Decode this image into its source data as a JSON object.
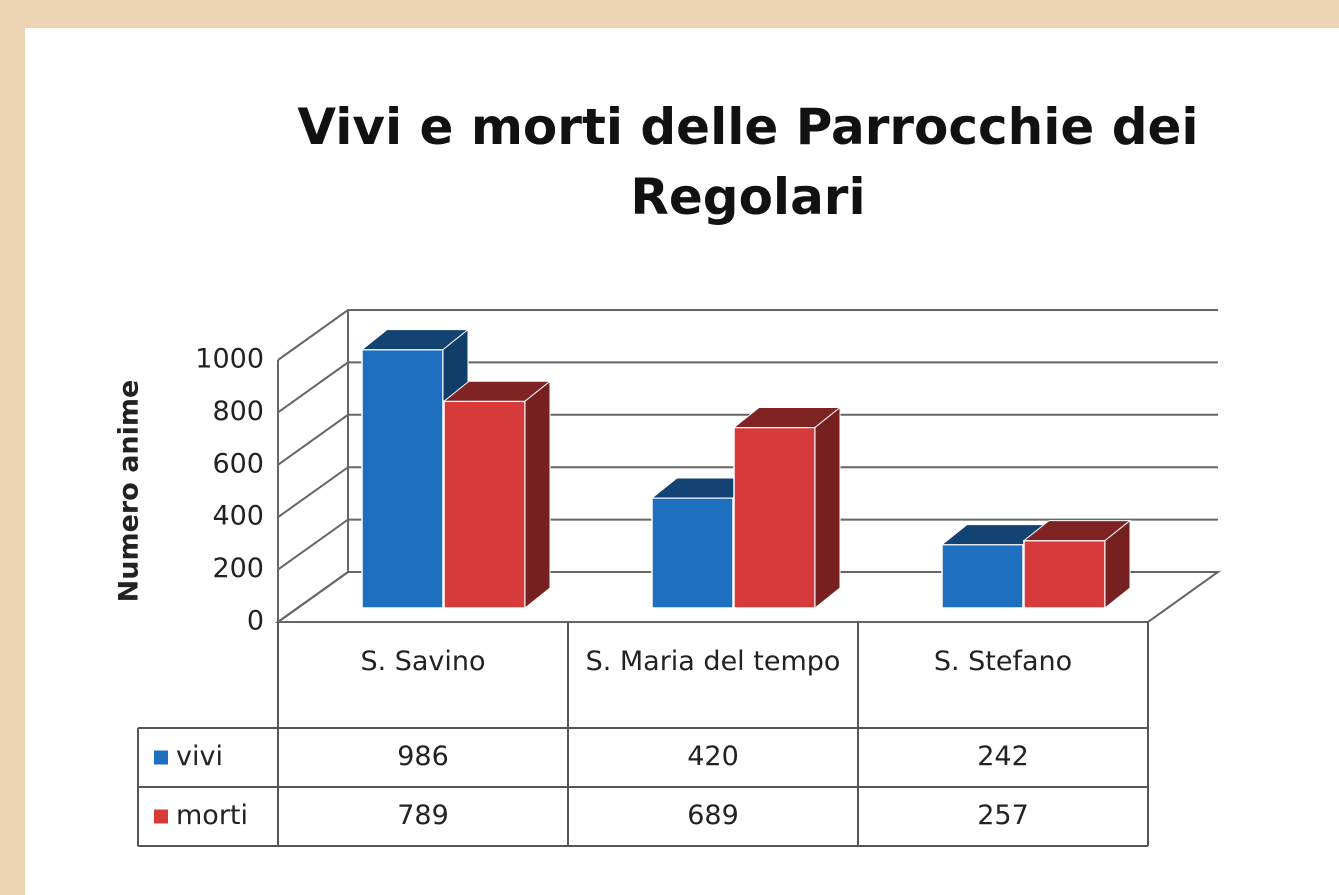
{
  "chart_data": {
    "type": "bar3d",
    "title": "Vivi e morti delle Parrocchie dei Regolari",
    "y_label": "Numero anime",
    "categories": [
      "S. Savino",
      "S. Maria del tempo",
      "S. Stefano"
    ],
    "series": [
      {
        "name": "vivi",
        "color": "#1f6fbf",
        "values": [
          986,
          420,
          242
        ]
      },
      {
        "name": "morti",
        "color": "#d63a3a",
        "values": [
          789,
          689,
          257
        ]
      }
    ],
    "ylim": [
      0,
      1000
    ],
    "yticks": [
      0,
      200,
      400,
      600,
      800,
      1000
    ],
    "grid": true,
    "data_table": true
  }
}
